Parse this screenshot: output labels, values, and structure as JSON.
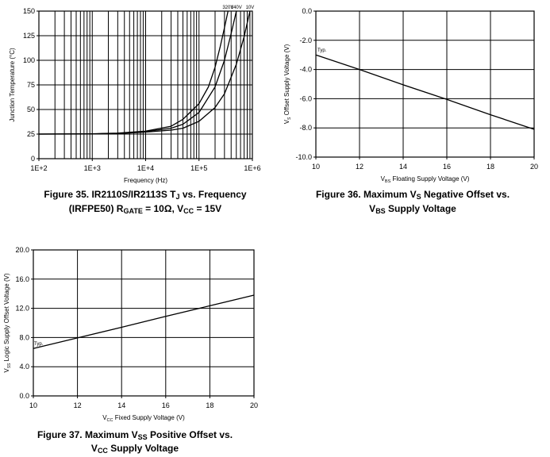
{
  "chart_data": [
    {
      "type": "line",
      "id": "fig35",
      "title_lines": [
        [
          {
            "t": "Figure 35.  IR2110S/IR2113S T"
          },
          {
            "t": "J",
            "sub": true
          },
          {
            "t": " vs. Frequency"
          }
        ],
        [
          {
            "t": "(IRFPE50)    R"
          },
          {
            "t": "GATE",
            "sub": true
          },
          {
            "t": " = 10Ω, V"
          },
          {
            "t": "CC",
            "sub": true
          },
          {
            "t": " = 15V"
          }
        ]
      ],
      "xlabel": [
        {
          "t": "Frequency (Hz)"
        }
      ],
      "ylabel": [
        {
          "t": "Junction Temperature (°C)"
        }
      ],
      "xscale": "log",
      "xlim": [
        100,
        1000000
      ],
      "ylim": [
        0,
        150
      ],
      "xticks": [
        100,
        1000,
        10000,
        100000,
        1000000
      ],
      "xtick_labels": [
        "1E+2",
        "1E+3",
        "1E+4",
        "1E+5",
        "1E+6"
      ],
      "yticks": [
        0,
        25,
        50,
        75,
        100,
        125,
        150
      ],
      "ytick_labels": [
        "0",
        "25",
        "50",
        "75",
        "100",
        "125",
        "150"
      ],
      "grid": true,
      "series": [
        {
          "name": "320V",
          "x": [
            100,
            1000,
            3000,
            10000,
            30000,
            50000,
            100000,
            150000,
            200000,
            250000,
            300000,
            350000
          ],
          "y": [
            25,
            25.3,
            26,
            28,
            33,
            40,
            56,
            73,
            93,
            114,
            133,
            150
          ]
        },
        {
          "name": "140V",
          "x": [
            100,
            1000,
            3000,
            10000,
            30000,
            50000,
            100000,
            200000,
            300000,
            400000,
            500000
          ],
          "y": [
            25,
            25.2,
            25.8,
            27.5,
            31,
            35,
            47,
            73,
            100,
            127,
            150
          ]
        },
        {
          "name": "10V",
          "x": [
            100,
            1000,
            3000,
            10000,
            30000,
            50000,
            100000,
            200000,
            300000,
            500000,
            700000,
            900000
          ],
          "y": [
            25,
            25.1,
            25.5,
            27,
            29,
            31,
            38,
            52,
            66,
            96,
            124,
            150
          ]
        }
      ]
    },
    {
      "type": "line",
      "id": "fig36",
      "title_lines": [
        [
          {
            "t": "Figure 36.   Maximum V"
          },
          {
            "t": "S",
            "sub": true
          },
          {
            "t": " Negative Offset vs."
          }
        ],
        [
          {
            "t": "V"
          },
          {
            "t": "BS",
            "sub": true
          },
          {
            "t": " Supply Voltage"
          }
        ]
      ],
      "xlabel": [
        {
          "t": "V"
        },
        {
          "t": "BS",
          "sub": true
        },
        {
          "t": " Floating Supply Voltage (V)"
        }
      ],
      "ylabel": [
        {
          "t": "V"
        },
        {
          "t": "S",
          "sub": true
        },
        {
          "t": " Offset Supply Voltage (V)"
        }
      ],
      "xscale": "linear",
      "xlim": [
        10,
        20
      ],
      "ylim": [
        -10,
        0
      ],
      "xticks": [
        10,
        12,
        14,
        16,
        18,
        20
      ],
      "xtick_labels": [
        "10",
        "12",
        "14",
        "16",
        "18",
        "20"
      ],
      "yticks": [
        -10,
        -8,
        -6,
        -4,
        -2,
        0
      ],
      "ytick_labels": [
        "-10.0",
        "-8.0",
        "-6.0",
        "-4.0",
        "-2.0",
        "0.0"
      ],
      "grid": true,
      "annotation": "Typ.",
      "series": [
        {
          "name": "Typ.",
          "x": [
            10,
            12,
            14,
            16,
            18,
            20
          ],
          "y": [
            -3.0,
            -4.0,
            -5.05,
            -6.05,
            -7.1,
            -8.1
          ]
        }
      ]
    },
    {
      "type": "line",
      "id": "fig37",
      "title_lines": [
        [
          {
            "t": "Figure 37.   Maximum V"
          },
          {
            "t": "SS",
            "sub": true
          },
          {
            "t": " Positive Offset vs."
          }
        ],
        [
          {
            "t": "V"
          },
          {
            "t": "CC",
            "sub": true
          },
          {
            "t": " Supply Voltage"
          }
        ]
      ],
      "xlabel": [
        {
          "t": "V"
        },
        {
          "t": "CC",
          "sub": true
        },
        {
          "t": " Fixed Supply Voltage (V)"
        }
      ],
      "ylabel": [
        {
          "t": "V"
        },
        {
          "t": "SS",
          "sub": true
        },
        {
          "t": " Logic Supply Offset Voltage (V)"
        }
      ],
      "xscale": "linear",
      "xlim": [
        10,
        20
      ],
      "ylim": [
        0,
        20
      ],
      "xticks": [
        10,
        12,
        14,
        16,
        18,
        20
      ],
      "xtick_labels": [
        "10",
        "12",
        "14",
        "16",
        "18",
        "20"
      ],
      "yticks": [
        0,
        4,
        8,
        12,
        16,
        20
      ],
      "ytick_labels": [
        "0.0",
        "4.0",
        "8.0",
        "12.0",
        "16.0",
        "20.0"
      ],
      "grid": true,
      "annotation": "Typ.",
      "series": [
        {
          "name": "Typ.",
          "x": [
            10,
            12,
            14,
            16,
            18,
            20
          ],
          "y": [
            6.5,
            7.95,
            9.4,
            10.9,
            12.35,
            13.8
          ]
        }
      ]
    }
  ]
}
